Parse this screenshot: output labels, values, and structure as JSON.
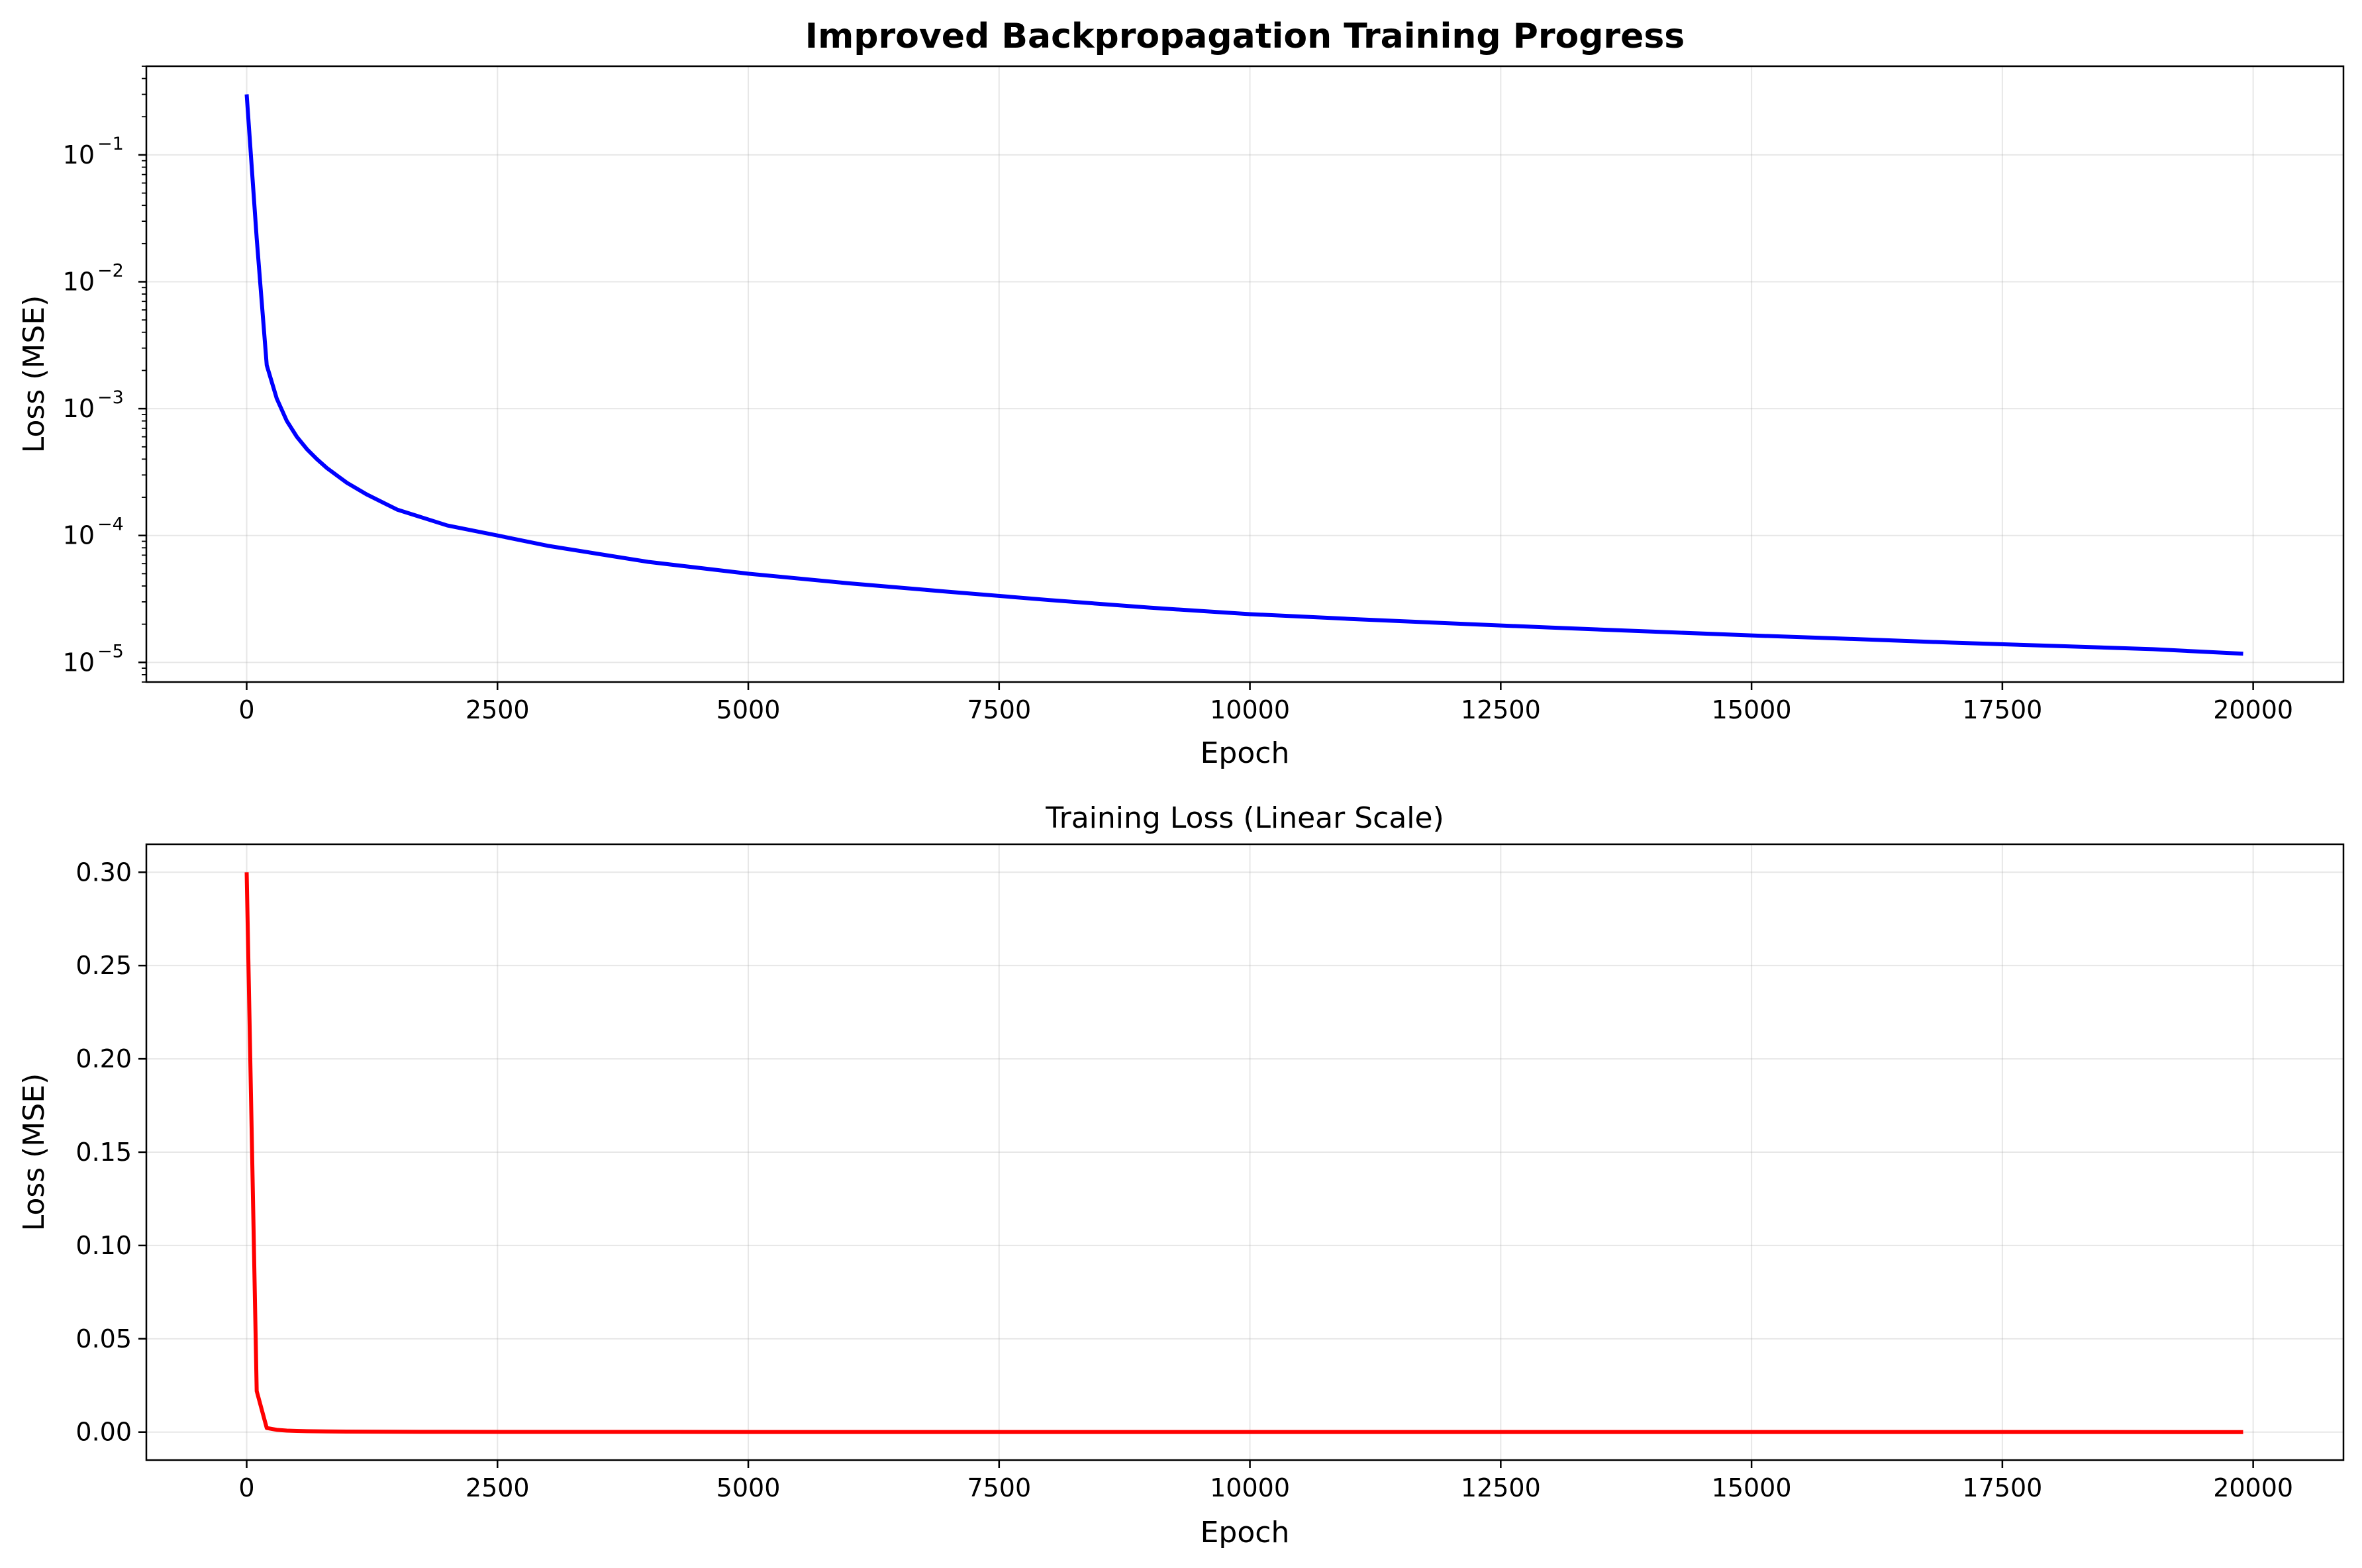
{
  "chart_data": [
    {
      "type": "line",
      "title": "Improved Backpropagation Training Progress",
      "xlabel": "Epoch",
      "ylabel": "Loss (MSE)",
      "yscale": "log",
      "xlim": [
        -1000,
        20900
      ],
      "ylim": [
        7e-06,
        0.5
      ],
      "grid": true,
      "color": "#0000ff",
      "xticks": [
        "0",
        "2500",
        "5000",
        "7500",
        "10000",
        "12500",
        "15000",
        "17500",
        "20000"
      ],
      "yticks": [
        {
          "base": "10",
          "exp": "−5"
        },
        {
          "base": "10",
          "exp": "−4"
        },
        {
          "base": "10",
          "exp": "−3"
        },
        {
          "base": "10",
          "exp": "−2"
        },
        {
          "base": "10",
          "exp": "−1"
        }
      ],
      "series": [
        {
          "x": [
            0,
            100,
            200,
            300,
            400,
            500,
            600,
            700,
            800,
            1000,
            1200,
            1500,
            2000,
            2500,
            3000,
            4000,
            5000,
            6000,
            7000,
            8000,
            9000,
            10000,
            11000,
            12000,
            13000,
            14000,
            15000,
            16000,
            17000,
            18000,
            19000,
            19900
          ],
          "y": [
            0.3,
            0.022,
            0.0022,
            0.0012,
            0.0008,
            0.0006,
            0.00048,
            0.0004,
            0.00034,
            0.00026,
            0.00021,
            0.00016,
            0.00012,
            0.0001,
            8.3e-05,
            6.2e-05,
            5e-05,
            4.2e-05,
            3.6e-05,
            3.1e-05,
            2.7e-05,
            2.4e-05,
            2.2e-05,
            2.03e-05,
            1.88e-05,
            1.75e-05,
            1.63e-05,
            1.53e-05,
            1.43e-05,
            1.35e-05,
            1.27e-05,
            1.17e-05
          ]
        }
      ]
    },
    {
      "type": "line",
      "title": "Training Loss (Linear Scale)",
      "xlabel": "Epoch",
      "ylabel": "Loss (MSE)",
      "yscale": "linear",
      "xlim": [
        -1000,
        20900
      ],
      "ylim": [
        -0.015,
        0.315
      ],
      "grid": true,
      "color": "#ff0000",
      "xticks": [
        "0",
        "2500",
        "5000",
        "7500",
        "10000",
        "12500",
        "15000",
        "17500",
        "20000"
      ],
      "yticks": [
        "0.00",
        "0.05",
        "0.10",
        "0.15",
        "0.20",
        "0.25",
        "0.30"
      ],
      "series": [
        {
          "x": [
            0,
            100,
            200,
            300,
            400,
            500,
            600,
            800,
            1000,
            1500,
            2000,
            3000,
            5000,
            10000,
            15000,
            19900
          ],
          "y": [
            0.3,
            0.022,
            0.0022,
            0.0012,
            0.0008,
            0.0006,
            0.00048,
            0.00034,
            0.00026,
            0.00016,
            0.00012,
            8.3e-05,
            5e-05,
            2.4e-05,
            1.63e-05,
            1.17e-05
          ]
        }
      ]
    }
  ]
}
